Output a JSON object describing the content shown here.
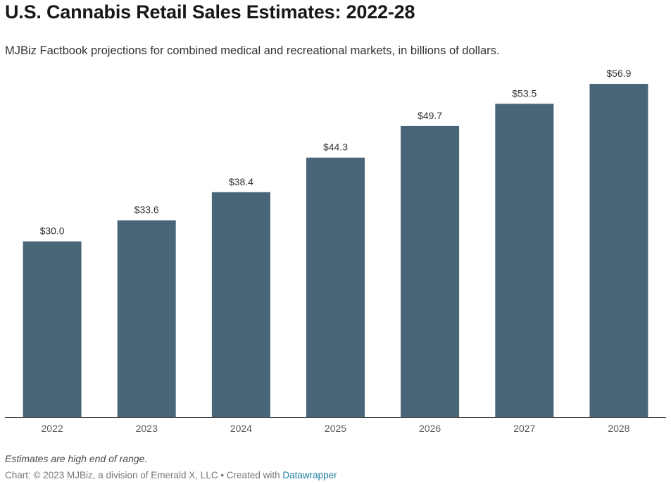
{
  "header": {
    "title": "U.S. Cannabis Retail Sales Estimates: 2022-28",
    "subtitle": "MJBiz Factbook projections for combined medical and recreational markets, in billions of dollars."
  },
  "footer": {
    "note": "Estimates are high end of range.",
    "credit_prefix": "Chart: © 2023 MJBiz, a division of Emerald X, LLC • Created with ",
    "credit_link": "Datawrapper"
  },
  "colors": {
    "bar": "#496678",
    "baseline": "#333333",
    "link": "#1d81a2"
  },
  "chart_data": {
    "type": "bar",
    "title": "U.S. Cannabis Retail Sales Estimates: 2022-28",
    "subtitle": "MJBiz Factbook projections for combined medical and recreational markets, in billions of dollars.",
    "xlabel": "",
    "ylabel": "",
    "categories": [
      "2022",
      "2023",
      "2024",
      "2025",
      "2026",
      "2027",
      "2028"
    ],
    "values": [
      30.0,
      33.6,
      38.4,
      44.3,
      49.7,
      53.5,
      56.9
    ],
    "value_labels": [
      "$30.0",
      "$33.6",
      "$38.4",
      "$44.3",
      "$49.7",
      "$53.5",
      "$56.9"
    ],
    "ylim": [
      0,
      56.9
    ],
    "grid": false,
    "legend": "none"
  }
}
